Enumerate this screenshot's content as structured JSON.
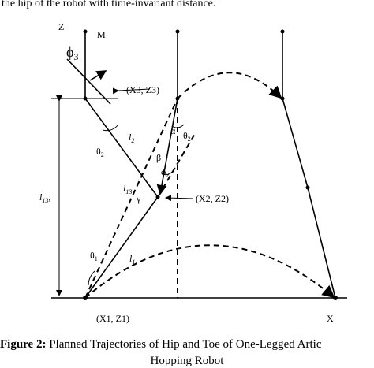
{
  "header": {
    "text": "the hip of the robot with time-invariant distance."
  },
  "labels": {
    "z_axis": "Z",
    "m": "M",
    "phi3": {
      "main": "ϕ",
      "sub": "3"
    },
    "x3z3": "(X3, Z3)",
    "alpha": "α",
    "theta2_right": {
      "main": "θ",
      "sub": "2"
    },
    "l2": {
      "main": "l",
      "sub": "2"
    },
    "theta2_left": {
      "main": "θ",
      "sub": "2"
    },
    "beta": "β",
    "phi2": {
      "main": "ϕ",
      "sub": "2"
    },
    "l13_axis": {
      "main": "l",
      "sub": "13",
      "tail": ","
    },
    "l13": {
      "main": "l",
      "sub": "13"
    },
    "gamma": "γ",
    "x2z2": "(X2, Z2)",
    "theta1": {
      "main": "θ",
      "sub": "1"
    },
    "l1": {
      "main": "l",
      "sub": "1"
    },
    "x1z1": "(X1, Z1)",
    "x_axis": "X"
  },
  "caption": {
    "label": "Figure 2:",
    "line1": "Planned Trajectories of Hip and Toe of One-Legged Artic",
    "line2": "Hopping Robot"
  }
}
